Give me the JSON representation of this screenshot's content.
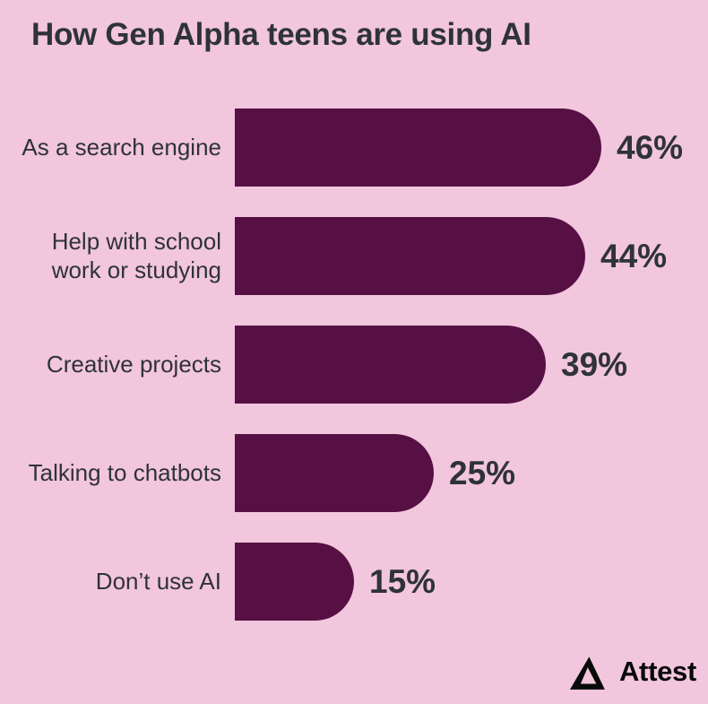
{
  "page": {
    "background_color": "#F2C6DD",
    "text_color": "#2E3338"
  },
  "chart_data": {
    "type": "bar",
    "orientation": "horizontal",
    "title": "How Gen Alpha teens are using AI",
    "categories": [
      "As a search engine",
      "Help with school work or studying",
      "Creative projects",
      "Talking to chatbots",
      "Don’t use AI"
    ],
    "category_lines": [
      [
        "As a search engine"
      ],
      [
        "Help with school",
        "work or studying"
      ],
      [
        "Creative projects"
      ],
      [
        "Talking to chatbots"
      ],
      [
        "Don’t use AI"
      ]
    ],
    "values": [
      46,
      44,
      39,
      25,
      15
    ],
    "value_labels": [
      "46%",
      "44%",
      "39%",
      "25%",
      "15%"
    ],
    "unit": "%",
    "xlim": [
      0,
      50
    ],
    "grid": false,
    "legend": "none",
    "bar_color": "#561043"
  },
  "branding": {
    "logo_icon": "attest-triangle-icon",
    "logo_text": "Attest",
    "logo_color": "#0A0A0A"
  }
}
